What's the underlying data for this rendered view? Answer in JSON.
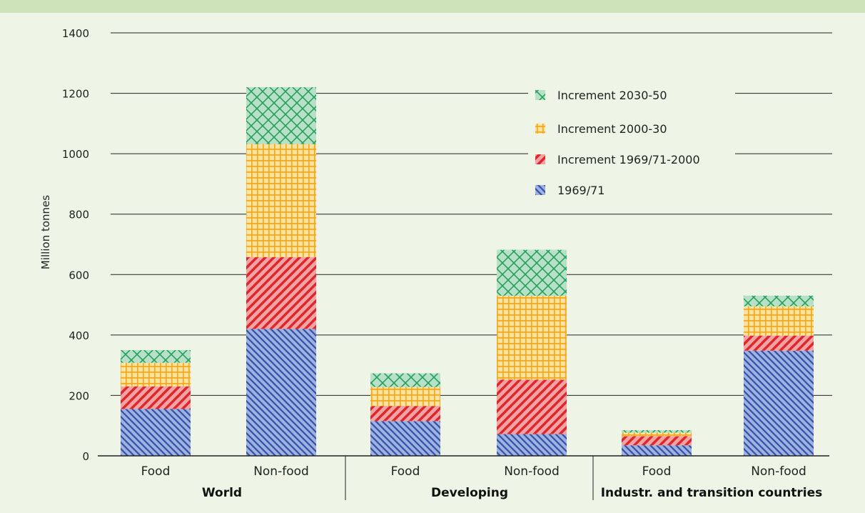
{
  "chart_data": {
    "type": "bar",
    "stacked": true,
    "ylabel": "Million tonnes",
    "ylim": [
      0,
      1400
    ],
    "yticks": [
      0,
      200,
      400,
      600,
      800,
      1000,
      1200,
      1400
    ],
    "grid": true,
    "legend_position": "top-right",
    "groups": [
      "World",
      "Developing",
      "Industr. and transition countries"
    ],
    "categories": [
      "Food",
      "Non-food",
      "Food",
      "Non-food",
      "Food",
      "Non-food"
    ],
    "series": [
      {
        "name": "1969/71",
        "color": "#8fa6d6",
        "pattern": "diagonal-down",
        "values": [
          155,
          420,
          115,
          72,
          35,
          348
        ]
      },
      {
        "name": "Increment 1969/71-2000",
        "color": "#e56b6b",
        "pattern": "diagonal-up",
        "values": [
          75,
          238,
          50,
          180,
          30,
          50
        ]
      },
      {
        "name": "Increment 2000-30",
        "color": "#f6c14e",
        "pattern": "grid",
        "values": [
          78,
          374,
          63,
          278,
          12,
          97
        ]
      },
      {
        "name": "Increment 2030-50",
        "color": "#9fd3b6",
        "pattern": "crosshatch",
        "values": [
          42,
          188,
          45,
          152,
          8,
          35
        ]
      }
    ]
  }
}
